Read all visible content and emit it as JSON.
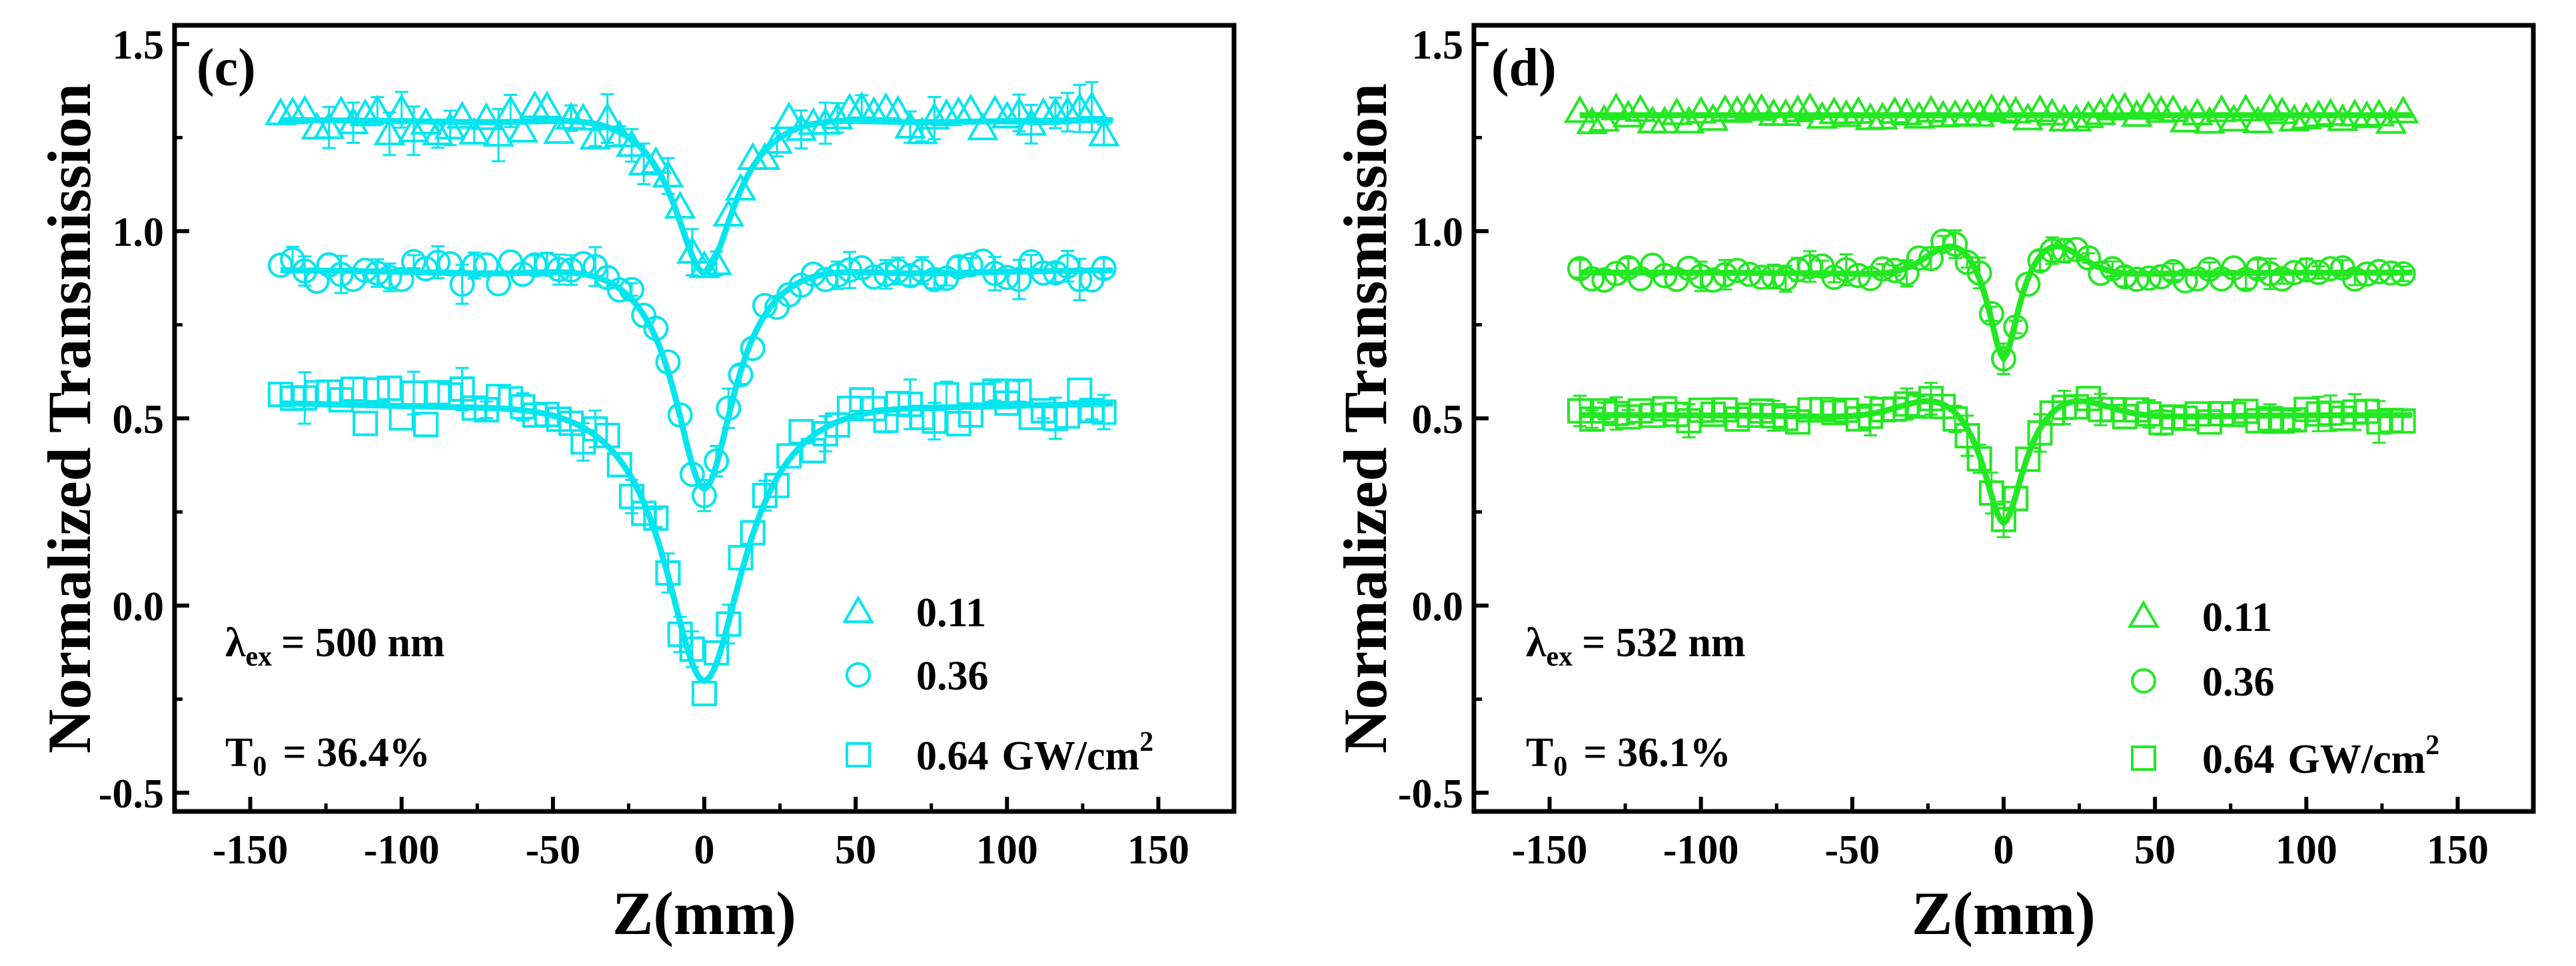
{
  "chart_data": [
    {
      "panel_label": "(c)",
      "type": "scatter",
      "color": "#00E5EE",
      "xlabel": "Z(mm)",
      "ylabel": "Normalized Transmission",
      "xlim": [
        -175,
        175
      ],
      "ylim": [
        -0.55,
        1.55
      ],
      "xticks": [
        -150,
        -100,
        -50,
        0,
        50,
        100,
        150
      ],
      "yticks": [
        -0.5,
        0.0,
        0.5,
        1.0,
        1.5
      ],
      "xtick_labels": [
        "-150",
        "-100",
        "-50",
        "0",
        "50",
        "100",
        "150"
      ],
      "ytick_labels": [
        "-0.5",
        "0.0",
        "0.5",
        "1.0",
        "1.5"
      ],
      "grid": false,
      "legend_position": "bottom-right",
      "annotation": {
        "lambda_symbol": "λ",
        "lambda_sub": "ex",
        "lambda_value": "= 500 nm",
        "t_symbol": "T",
        "t_sub": "0",
        "t_value": "= 36.4%"
      },
      "legend_units": "GW/cm",
      "legend_units_sup": "2",
      "series": [
        {
          "name": "0.11",
          "marker": "triangle",
          "baseline": 1.3,
          "depth": 0.42,
          "width": 12,
          "hump": 0.03,
          "noise": 0.04,
          "err": 0.05
        },
        {
          "name": "0.36",
          "marker": "circle",
          "baseline": 0.9,
          "depth": 0.6,
          "width": 12,
          "hump": 0.04,
          "noise": 0.03,
          "err": 0.04
        },
        {
          "name": "0.64",
          "marker": "square",
          "baseline": 0.55,
          "depth": 0.76,
          "width": 16,
          "hump": 0.03,
          "noise": 0.05,
          "err": 0.05
        }
      ]
    },
    {
      "panel_label": "(d)",
      "type": "scatter",
      "color": "#22E822",
      "xlabel": "Z(mm)",
      "ylabel": "Normalized Transmission",
      "xlim": [
        -175,
        175
      ],
      "ylim": [
        -0.55,
        1.55
      ],
      "xticks": [
        -150,
        -100,
        -50,
        0,
        50,
        100,
        150
      ],
      "yticks": [
        -0.5,
        0.0,
        0.5,
        1.0,
        1.5
      ],
      "xtick_labels": [
        "-150",
        "-100",
        "-50",
        "0",
        "50",
        "100",
        "150"
      ],
      "ytick_labels": [
        "-0.5",
        "0.0",
        "0.5",
        "1.0",
        "1.5"
      ],
      "grid": false,
      "legend_position": "bottom-right",
      "annotation": {
        "lambda_symbol": "λ",
        "lambda_sub": "ex",
        "lambda_value": "= 532 nm",
        "t_symbol": "T",
        "t_sub": "0",
        "t_value": "= 36.1%"
      },
      "legend_units": "GW/cm",
      "legend_units_sup": "2",
      "series": [
        {
          "name": "0.11",
          "marker": "triangle",
          "baseline": 1.31,
          "depth": 0.0,
          "width": 8,
          "hump": 0.0,
          "noise": 0.02,
          "err": 0.0
        },
        {
          "name": "0.36",
          "marker": "circle",
          "baseline": 0.89,
          "depth": 0.26,
          "width": 6,
          "hump": 0.1,
          "noise": 0.02,
          "err": 0.03
        },
        {
          "name": "0.64",
          "marker": "square",
          "baseline": 0.51,
          "depth": 0.31,
          "width": 8,
          "hump": 0.07,
          "noise": 0.02,
          "err": 0.04
        }
      ]
    }
  ]
}
